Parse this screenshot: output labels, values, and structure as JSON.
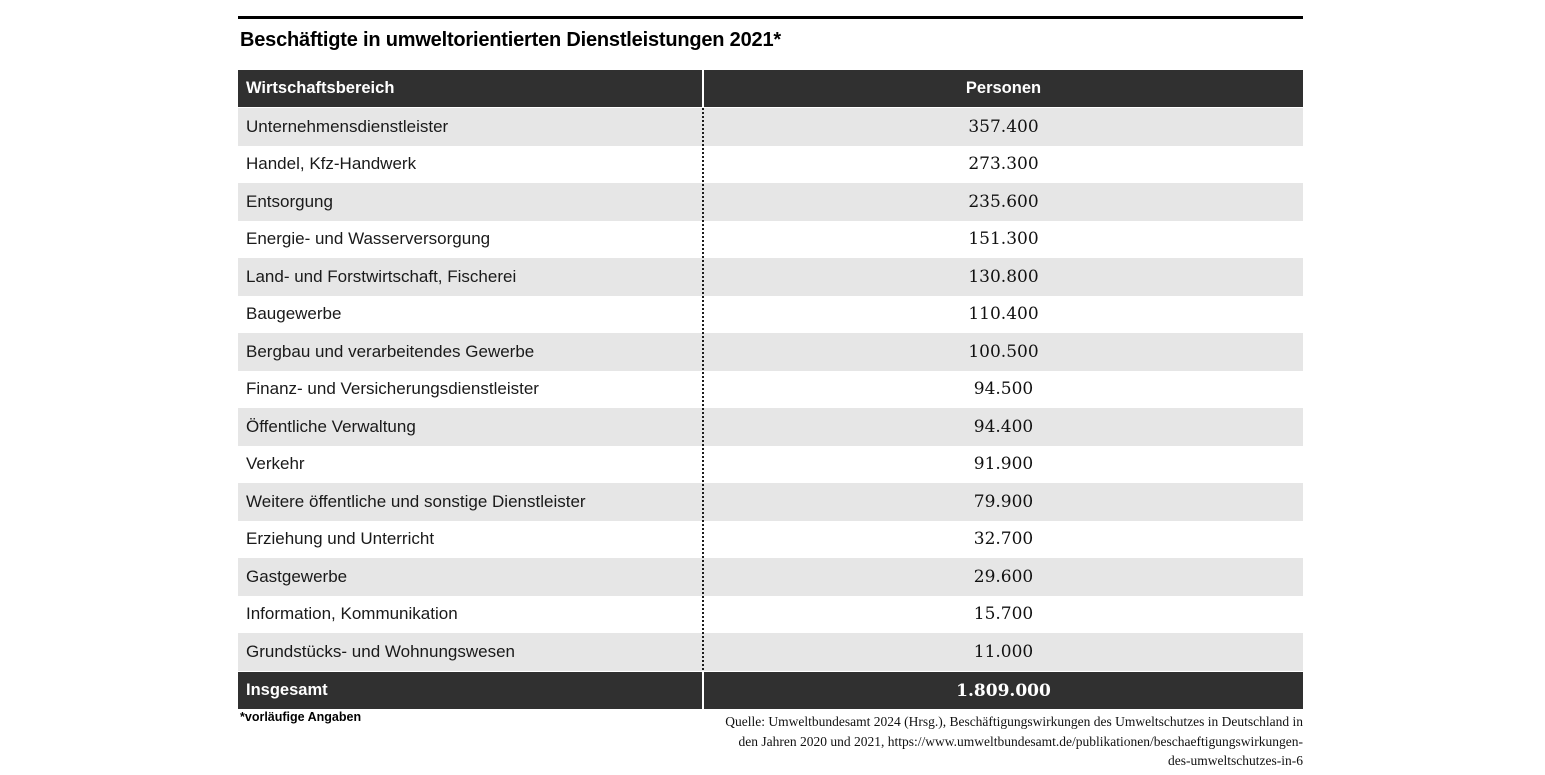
{
  "title": "Beschäftigte in umweltorientierten Dienstleistungen 2021*",
  "table": {
    "columns": [
      "Wirtschaftsbereich",
      "Personen"
    ],
    "rows": [
      {
        "sector": "Unternehmensdienstleister",
        "value": "357.400"
      },
      {
        "sector": "Handel, Kfz-Handwerk",
        "value": "273.300"
      },
      {
        "sector": "Entsorgung",
        "value": "235.600"
      },
      {
        "sector": "Energie- und Wasserversorgung",
        "value": "151.300"
      },
      {
        "sector": "Land- und Forstwirtschaft, Fischerei",
        "value": "130.800"
      },
      {
        "sector": "Baugewerbe",
        "value": "110.400"
      },
      {
        "sector": "Bergbau und verarbeitendes Gewerbe",
        "value": "100.500"
      },
      {
        "sector": "Finanz- und Versicherungsdienstleister",
        "value": "94.500"
      },
      {
        "sector": "Öffentliche Verwaltung",
        "value": "94.400"
      },
      {
        "sector": "Verkehr",
        "value": "91.900"
      },
      {
        "sector": "Weitere öffentliche und sonstige Dienstleister",
        "value": "79.900"
      },
      {
        "sector": "Erziehung und Unterricht",
        "value": "32.700"
      },
      {
        "sector": "Gastgewerbe",
        "value": "29.600"
      },
      {
        "sector": "Information, Kommunikation",
        "value": "15.700"
      },
      {
        "sector": "Grundstücks- und Wohnungswesen",
        "value": "11.000"
      }
    ],
    "total": {
      "sector": "Insgesamt",
      "value": "1.809.000"
    }
  },
  "footnote": "*vorläufige Angaben",
  "source_lines": [
    "Quelle: Umweltbundesamt 2024 (Hrsg.), Beschäftigungswirkungen des Umweltschutzes in Deutschland in",
    "den Jahren 2020 und 2021,  https://www.umweltbundesamt.de/publikationen/beschaeftigungswirkungen-",
    "des-umweltschutzes-in-6"
  ],
  "colors": {
    "header_dark": "#303030",
    "row_stripe": "#e6e6e6",
    "rule_black": "#000000"
  },
  "chart_data": {
    "type": "table",
    "title": "Beschäftigte in umweltorientierten Dienstleistungen 2021*",
    "columns": [
      "Wirtschaftsbereich",
      "Personen"
    ],
    "categories": [
      "Unternehmensdienstleister",
      "Handel, Kfz-Handwerk",
      "Entsorgung",
      "Energie- und Wasserversorgung",
      "Land- und Forstwirtschaft, Fischerei",
      "Baugewerbe",
      "Bergbau und verarbeitendes Gewerbe",
      "Finanz- und Versicherungsdienstleister",
      "Öffentliche Verwaltung",
      "Verkehr",
      "Weitere öffentliche und sonstige Dienstleister",
      "Erziehung und Unterricht",
      "Gastgewerbe",
      "Information, Kommunikation",
      "Grundstücks- und Wohnungswesen"
    ],
    "values": [
      357400,
      273300,
      235600,
      151300,
      130800,
      110400,
      100500,
      94500,
      94400,
      91900,
      79900,
      32700,
      29600,
      15700,
      11000
    ],
    "values_display": [
      "357.400",
      "273.300",
      "235.600",
      "151.300",
      "130.800",
      "110.400",
      "100.500",
      "94.500",
      "94.400",
      "91.900",
      "79.900",
      "32.700",
      "29.600",
      "15.700",
      "11.000"
    ],
    "total_label": "Insgesamt",
    "total": 1809000,
    "total_display": "1.809.000",
    "footnote": "*vorläufige Angaben"
  }
}
